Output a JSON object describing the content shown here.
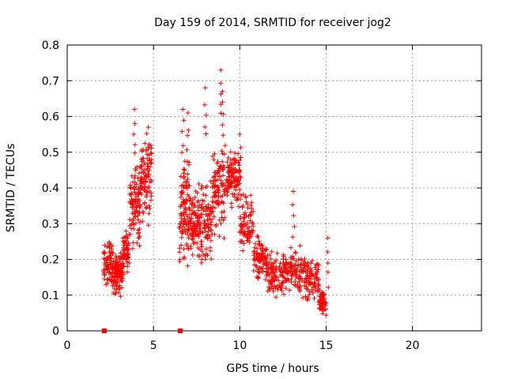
{
  "chart_data": {
    "type": "scatter",
    "title": "Day 159 of 2014, SRMTID for receiver jog2",
    "xlabel": "GPS time / hours",
    "ylabel": "SRMTID / TECUs",
    "xlim": [
      0,
      24
    ],
    "ylim": [
      0,
      0.8
    ],
    "xticks": [
      0,
      5,
      10,
      15,
      20
    ],
    "yticks": [
      0,
      0.1,
      0.2,
      0.3,
      0.4,
      0.5,
      0.6,
      0.7,
      0.8
    ],
    "xtick_labels": [
      "0",
      "5",
      "10",
      "15",
      "20"
    ],
    "ytick_labels": [
      "0",
      "0.1",
      "0.2",
      "0.3",
      "0.4",
      "0.5",
      "0.6",
      "0.7",
      "0.8"
    ],
    "grid": true,
    "marker": "+",
    "color": "#ff0000",
    "zero_markers": {
      "x": [
        2.15,
        6.55
      ],
      "y": [
        0,
        0
      ]
    },
    "clusters": [
      {
        "x_range": [
          2.1,
          2.6
        ],
        "y_center": 0.19,
        "y_spread": 0.06,
        "count": 70
      },
      {
        "x_range": [
          2.6,
          3.2
        ],
        "y_center": 0.16,
        "y_spread": 0.05,
        "count": 110
      },
      {
        "x_range": [
          3.2,
          3.6
        ],
        "y_center": 0.22,
        "y_spread": 0.06,
        "count": 60
      },
      {
        "x_range": [
          3.6,
          4.2
        ],
        "y_center": 0.35,
        "y_spread": 0.1,
        "count": 90
      },
      {
        "x_range": [
          4.2,
          4.9
        ],
        "y_center": 0.43,
        "y_spread": 0.09,
        "count": 100
      },
      {
        "x_range": [
          6.5,
          7.1
        ],
        "y_center": 0.34,
        "y_spread": 0.12,
        "count": 110
      },
      {
        "x_range": [
          7.1,
          7.7
        ],
        "y_center": 0.3,
        "y_spread": 0.08,
        "count": 90
      },
      {
        "x_range": [
          7.7,
          8.4
        ],
        "y_center": 0.3,
        "y_spread": 0.1,
        "count": 90
      },
      {
        "x_range": [
          8.4,
          9.2
        ],
        "y_center": 0.4,
        "y_spread": 0.1,
        "count": 100
      },
      {
        "x_range": [
          9.2,
          10.0
        ],
        "y_center": 0.43,
        "y_spread": 0.06,
        "count": 110
      },
      {
        "x_range": [
          10.0,
          10.8
        ],
        "y_center": 0.3,
        "y_spread": 0.07,
        "count": 80
      },
      {
        "x_range": [
          10.8,
          11.6
        ],
        "y_center": 0.2,
        "y_spread": 0.05,
        "count": 90
      },
      {
        "x_range": [
          11.6,
          12.6
        ],
        "y_center": 0.16,
        "y_spread": 0.05,
        "count": 100
      },
      {
        "x_range": [
          12.6,
          13.8
        ],
        "y_center": 0.17,
        "y_spread": 0.06,
        "count": 110
      },
      {
        "x_range": [
          13.8,
          14.6
        ],
        "y_center": 0.14,
        "y_spread": 0.05,
        "count": 80
      },
      {
        "x_range": [
          14.6,
          15.0
        ],
        "y_center": 0.08,
        "y_spread": 0.03,
        "count": 70
      }
    ],
    "peaks": [
      {
        "x": 3.9,
        "y": 0.62
      },
      {
        "x": 4.7,
        "y": 0.57
      },
      {
        "x": 6.7,
        "y": 0.62
      },
      {
        "x": 7.0,
        "y": 0.61
      },
      {
        "x": 8.0,
        "y": 0.68
      },
      {
        "x": 8.9,
        "y": 0.73
      },
      {
        "x": 9.0,
        "y": 0.67
      },
      {
        "x": 10.0,
        "y": 0.55
      },
      {
        "x": 13.1,
        "y": 0.39
      },
      {
        "x": 15.1,
        "y": 0.26
      }
    ]
  }
}
